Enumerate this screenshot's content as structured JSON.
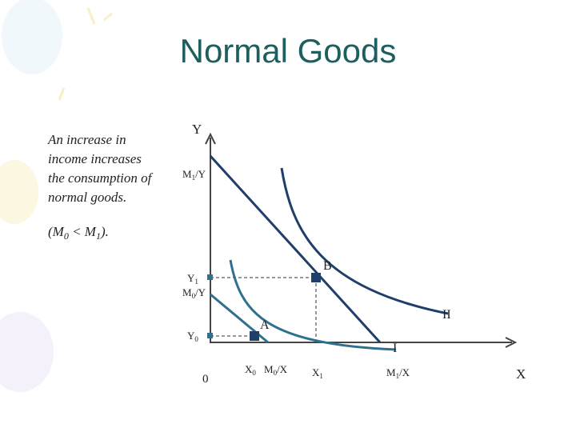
{
  "title": "Normal Goods",
  "note": {
    "lines": [
      "An increase in",
      "income increases",
      "the consumption of",
      "normal goods."
    ],
    "condition": {
      "open": "(M",
      "sub_a": "0",
      "mid": " < M",
      "sub_b": "1",
      "close": ")."
    }
  },
  "axes": {
    "y": "Y",
    "x": "X",
    "origin": "0"
  },
  "y_labels": {
    "m1y": {
      "base": "M",
      "sub": "1",
      "rest": "/Y"
    },
    "y1": {
      "base": "Y",
      "sub": "1"
    },
    "m0y": {
      "base": "M",
      "sub": "0",
      "rest": "/Y"
    },
    "y0": {
      "base": "Y",
      "sub": "0"
    }
  },
  "x_labels": {
    "x0": {
      "base": "X",
      "sub": "0"
    },
    "m0x": {
      "base": "M",
      "sub": "0",
      "rest": "/X"
    },
    "x1": {
      "base": "X",
      "sub": "1"
    },
    "m1x": {
      "base": "M",
      "sub": "1",
      "rest": "/X"
    }
  },
  "points": {
    "a": "A",
    "b": "B"
  },
  "curves": {
    "i": "I",
    "ii": "II"
  }
}
